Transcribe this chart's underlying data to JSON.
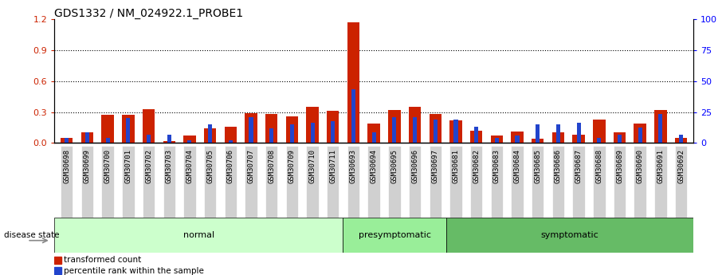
{
  "title": "GDS1332 / NM_024922.1_PROBE1",
  "samples": [
    "GSM30698",
    "GSM30699",
    "GSM30700",
    "GSM30701",
    "GSM30702",
    "GSM30703",
    "GSM30704",
    "GSM30705",
    "GSM30706",
    "GSM30707",
    "GSM30708",
    "GSM30709",
    "GSM30710",
    "GSM30711",
    "GSM30693",
    "GSM30694",
    "GSM30695",
    "GSM30696",
    "GSM30697",
    "GSM30681",
    "GSM30682",
    "GSM30683",
    "GSM30684",
    "GSM30685",
    "GSM30686",
    "GSM30687",
    "GSM30688",
    "GSM30689",
    "GSM30690",
    "GSM30691",
    "GSM30692"
  ],
  "transformed_count": [
    0.05,
    0.1,
    0.27,
    0.27,
    0.33,
    0.02,
    0.07,
    0.14,
    0.16,
    0.29,
    0.28,
    0.26,
    0.35,
    0.31,
    1.17,
    0.19,
    0.32,
    0.35,
    0.28,
    0.22,
    0.12,
    0.07,
    0.11,
    0.04,
    0.1,
    0.08,
    0.23,
    0.1,
    0.19,
    0.32,
    0.05
  ],
  "percentile_rank_scaled": [
    0.05,
    0.1,
    0.05,
    0.24,
    0.08,
    0.08,
    0.03,
    0.18,
    0.03,
    0.25,
    0.14,
    0.18,
    0.2,
    0.21,
    0.52,
    0.1,
    0.25,
    0.25,
    0.23,
    0.23,
    0.16,
    0.05,
    0.07,
    0.18,
    0.18,
    0.2,
    0.05,
    0.08,
    0.15,
    0.28,
    0.08
  ],
  "groups": [
    {
      "label": "normal",
      "start": 0,
      "end": 13,
      "color": "#ccffcc"
    },
    {
      "label": "presymptomatic",
      "start": 14,
      "end": 18,
      "color": "#99ee99"
    },
    {
      "label": "symptomatic",
      "start": 19,
      "end": 30,
      "color": "#66bb66"
    }
  ],
  "ylim_left": [
    0,
    1.2
  ],
  "ylim_right": [
    0,
    100
  ],
  "yticks_left": [
    0,
    0.3,
    0.6,
    0.9,
    1.2
  ],
  "yticks_right": [
    0,
    25,
    50,
    75,
    100
  ],
  "red_color": "#cc2200",
  "blue_color": "#2244cc",
  "bg_color": "#ffffff",
  "plot_bg": "#ffffff",
  "legend_red": "transformed count",
  "legend_blue": "percentile rank within the sample",
  "disease_state_label": "disease state",
  "bar_width": 0.6,
  "blue_bar_width": 0.2
}
